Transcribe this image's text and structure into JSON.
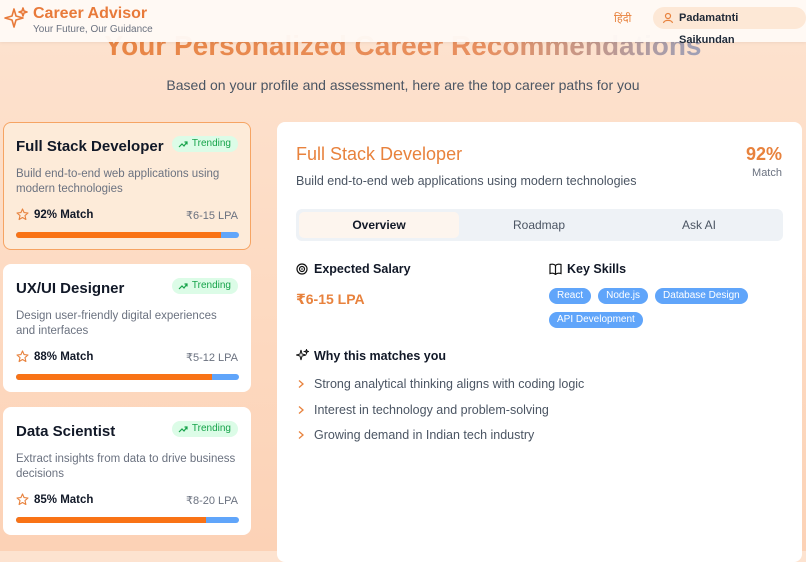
{
  "header": {
    "brand": "Career Advisor",
    "tagline": "Your Future, Our Guidance",
    "language": "हिंदी",
    "user": "Padamatnti Saikundan"
  },
  "hero": {
    "title": "Your Personalized Career Recommendations",
    "subtitle": "Based on your profile and assessment, here are the top career paths for you"
  },
  "careers": [
    {
      "title": "Full Stack Developer",
      "badge": "Trending",
      "description": "Build end-to-end web applications using modern technologies",
      "match": "92% Match",
      "match_value": 92,
      "salary": "₹6-15 LPA"
    },
    {
      "title": "UX/UI Designer",
      "badge": "Trending",
      "description": "Design user-friendly digital experiences and interfaces",
      "match": "88% Match",
      "match_value": 88,
      "salary": "₹5-12 LPA"
    },
    {
      "title": "Data Scientist",
      "badge": "Trending",
      "description": "Extract insights from data to drive business decisions",
      "match": "85% Match",
      "match_value": 85,
      "salary": "₹8-20 LPA"
    }
  ],
  "detail": {
    "title": "Full Stack Developer",
    "description": "Build end-to-end web applications using modern technologies",
    "match_percent": "92%",
    "match_label": "Match",
    "tabs": [
      "Overview",
      "Roadmap",
      "Ask AI"
    ],
    "salary_heading": "Expected Salary",
    "salary": "₹6-15 LPA",
    "skills_heading": "Key Skills",
    "skills": [
      "React",
      "Node.js",
      "Database Design",
      "API Development"
    ],
    "reasons_heading": "Why this matches you",
    "reasons": [
      "Strong analytical thinking aligns with coding logic",
      "Interest in technology and problem-solving",
      "Growing demand in Indian tech industry"
    ]
  }
}
